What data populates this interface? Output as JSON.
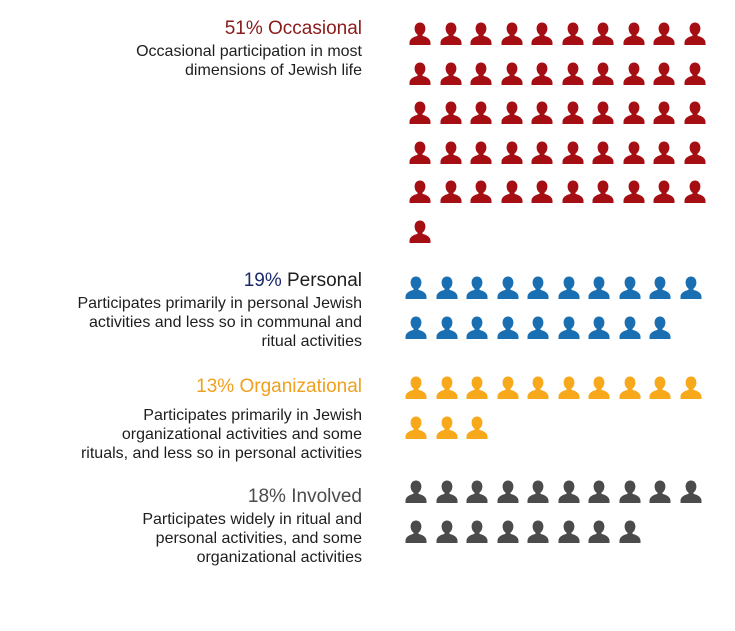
{
  "chart_data": {
    "type": "pictograph",
    "unit": "each icon = 1%",
    "groups": [
      {
        "id": "occasional",
        "percent_label": "51%",
        "name": "Occasional",
        "value": 51,
        "color": "#a50e13",
        "name_color": "#8b1a1a",
        "description": [
          "Occasional participation in most",
          "dimensions of Jewish life"
        ]
      },
      {
        "id": "personal",
        "percent_label": "19%",
        "name": "Personal",
        "value": 19,
        "color": "#1a6fb2",
        "percent_color": "#1a2a6b",
        "name_color": "#1e1e1e",
        "description": [
          "Participates primarily in personal Jewish",
          "activities and less so in communal and",
          "ritual activities"
        ]
      },
      {
        "id": "organizational",
        "percent_label": "13%",
        "name": "Organizational",
        "value": 13,
        "color": "#f7a81b",
        "name_color": "#f0a01e",
        "description": [
          "Participates primarily in Jewish",
          "organizational activities and some",
          "rituals, and less so in personal activities"
        ]
      },
      {
        "id": "involved",
        "percent_label": "18%",
        "name": "Involved",
        "value": 18,
        "color": "#4b4b4b",
        "name_color": "#4b4b4b",
        "description": [
          "Participates widely in ritual and",
          "personal activities, and some",
          "organizational activities"
        ]
      }
    ]
  }
}
